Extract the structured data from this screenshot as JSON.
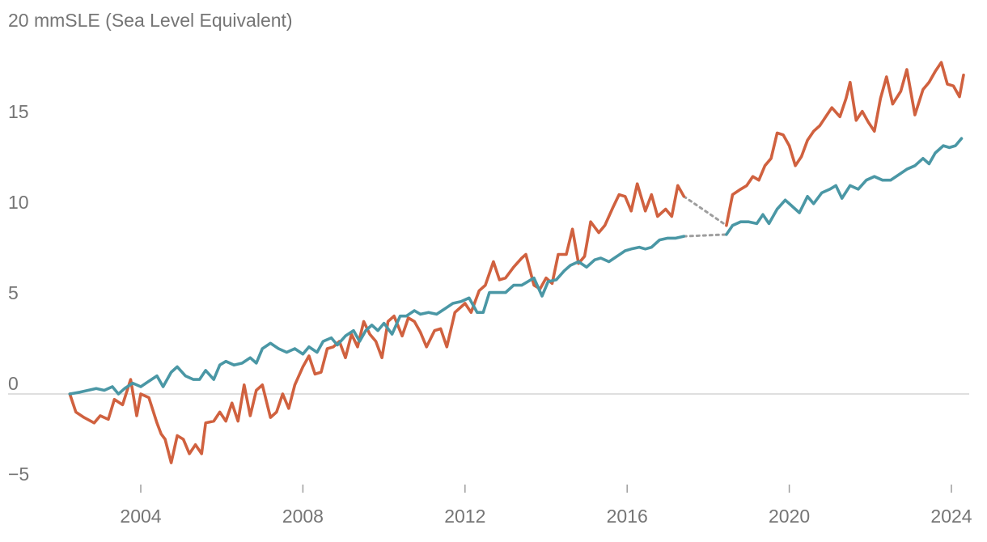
{
  "chart_data": {
    "type": "line",
    "title": "",
    "ylabel": "mmSLE (Sea Level Equivalent)",
    "top_tick_label": "20 mmSLE (Sea Level Equivalent)",
    "xlabel": "",
    "ylim": [
      -6,
      20
    ],
    "xlim": [
      2002.0,
      2024.6
    ],
    "yticks": [
      {
        "value": 15,
        "label": "15"
      },
      {
        "value": 10,
        "label": "10"
      },
      {
        "value": 5,
        "label": "5"
      },
      {
        "value": 0,
        "label": "0"
      },
      {
        "value": -5,
        "label": "−5"
      }
    ],
    "xticks": [
      {
        "value": 2004,
        "label": "2004"
      },
      {
        "value": 2008,
        "label": "2008"
      },
      {
        "value": 2012,
        "label": "2012"
      },
      {
        "value": 2016,
        "label": "2016"
      },
      {
        "value": 2020,
        "label": "2020"
      },
      {
        "value": 2024,
        "label": "2024"
      }
    ],
    "gap": {
      "start": 2017.4,
      "end": 2018.45,
      "style": "dotted",
      "color": "#9e9e9e"
    },
    "series": [
      {
        "name": "series-orange",
        "color": "#d0613f",
        "points": [
          [
            2002.25,
            0.0
          ],
          [
            2002.4,
            -1.0
          ],
          [
            2002.6,
            -1.3
          ],
          [
            2002.85,
            -1.6
          ],
          [
            2003.0,
            -1.2
          ],
          [
            2003.2,
            -1.4
          ],
          [
            2003.35,
            -0.3
          ],
          [
            2003.55,
            -0.6
          ],
          [
            2003.75,
            0.8
          ],
          [
            2003.9,
            -1.2
          ],
          [
            2004.0,
            0.0
          ],
          [
            2004.2,
            -0.2
          ],
          [
            2004.4,
            -1.6
          ],
          [
            2004.5,
            -2.2
          ],
          [
            2004.6,
            -2.5
          ],
          [
            2004.75,
            -3.8
          ],
          [
            2004.9,
            -2.3
          ],
          [
            2005.05,
            -2.5
          ],
          [
            2005.2,
            -3.3
          ],
          [
            2005.35,
            -2.8
          ],
          [
            2005.5,
            -3.3
          ],
          [
            2005.6,
            -1.6
          ],
          [
            2005.8,
            -1.5
          ],
          [
            2005.95,
            -1.0
          ],
          [
            2006.1,
            -1.5
          ],
          [
            2006.25,
            -0.5
          ],
          [
            2006.4,
            -1.5
          ],
          [
            2006.55,
            0.5
          ],
          [
            2006.7,
            -1.2
          ],
          [
            2006.85,
            0.2
          ],
          [
            2007.0,
            0.5
          ],
          [
            2007.2,
            -1.3
          ],
          [
            2007.35,
            -1.0
          ],
          [
            2007.5,
            0.0
          ],
          [
            2007.65,
            -0.8
          ],
          [
            2007.8,
            0.5
          ],
          [
            2008.0,
            1.5
          ],
          [
            2008.15,
            2.1
          ],
          [
            2008.3,
            1.1
          ],
          [
            2008.45,
            1.2
          ],
          [
            2008.6,
            2.5
          ],
          [
            2008.75,
            2.6
          ],
          [
            2008.9,
            2.9
          ],
          [
            2009.05,
            2.0
          ],
          [
            2009.2,
            3.3
          ],
          [
            2009.35,
            2.6
          ],
          [
            2009.5,
            4.0
          ],
          [
            2009.65,
            3.3
          ],
          [
            2009.8,
            2.9
          ],
          [
            2009.95,
            2.0
          ],
          [
            2010.1,
            4.0
          ],
          [
            2010.25,
            4.3
          ],
          [
            2010.45,
            3.2
          ],
          [
            2010.6,
            4.2
          ],
          [
            2010.75,
            4.0
          ],
          [
            2010.9,
            3.4
          ],
          [
            2011.05,
            2.6
          ],
          [
            2011.25,
            3.5
          ],
          [
            2011.4,
            3.6
          ],
          [
            2011.55,
            2.6
          ],
          [
            2011.75,
            4.5
          ],
          [
            2011.9,
            4.8
          ],
          [
            2012.0,
            5.0
          ],
          [
            2012.15,
            4.5
          ],
          [
            2012.35,
            5.7
          ],
          [
            2012.5,
            6.0
          ],
          [
            2012.7,
            7.3
          ],
          [
            2012.85,
            6.3
          ],
          [
            2013.0,
            6.4
          ],
          [
            2013.2,
            7.0
          ],
          [
            2013.4,
            7.5
          ],
          [
            2013.5,
            7.7
          ],
          [
            2013.7,
            6.0
          ],
          [
            2013.85,
            5.8
          ],
          [
            2014.0,
            6.4
          ],
          [
            2014.15,
            6.1
          ],
          [
            2014.3,
            7.7
          ],
          [
            2014.5,
            7.7
          ],
          [
            2014.65,
            9.1
          ],
          [
            2014.8,
            7.2
          ],
          [
            2014.95,
            7.6
          ],
          [
            2015.1,
            9.5
          ],
          [
            2015.3,
            8.9
          ],
          [
            2015.45,
            9.3
          ],
          [
            2015.65,
            10.3
          ],
          [
            2015.8,
            11.0
          ],
          [
            2015.95,
            10.9
          ],
          [
            2016.1,
            10.1
          ],
          [
            2016.25,
            11.6
          ],
          [
            2016.45,
            10.1
          ],
          [
            2016.6,
            11.0
          ],
          [
            2016.75,
            9.8
          ],
          [
            2016.95,
            10.2
          ],
          [
            2017.1,
            9.8
          ],
          [
            2017.25,
            11.5
          ],
          [
            2017.4,
            10.9
          ]
        ]
      },
      {
        "name": "series-orange-2",
        "color": "#d0613f",
        "points": [
          [
            2018.45,
            9.3
          ],
          [
            2018.6,
            11.0
          ],
          [
            2018.8,
            11.3
          ],
          [
            2018.95,
            11.5
          ],
          [
            2019.1,
            12.0
          ],
          [
            2019.25,
            11.8
          ],
          [
            2019.4,
            12.6
          ],
          [
            2019.55,
            13.0
          ],
          [
            2019.7,
            14.4
          ],
          [
            2019.85,
            14.3
          ],
          [
            2020.0,
            13.7
          ],
          [
            2020.15,
            12.6
          ],
          [
            2020.3,
            13.1
          ],
          [
            2020.45,
            14.0
          ],
          [
            2020.6,
            14.5
          ],
          [
            2020.75,
            14.8
          ],
          [
            2020.9,
            15.3
          ],
          [
            2021.05,
            15.8
          ],
          [
            2021.25,
            15.3
          ],
          [
            2021.4,
            16.3
          ],
          [
            2021.5,
            17.2
          ],
          [
            2021.65,
            15.1
          ],
          [
            2021.8,
            15.6
          ],
          [
            2021.95,
            15.0
          ],
          [
            2022.1,
            14.5
          ],
          [
            2022.25,
            16.3
          ],
          [
            2022.4,
            17.5
          ],
          [
            2022.55,
            16.0
          ],
          [
            2022.75,
            16.7
          ],
          [
            2022.9,
            17.9
          ],
          [
            2023.1,
            15.4
          ],
          [
            2023.3,
            16.8
          ],
          [
            2023.45,
            17.2
          ],
          [
            2023.6,
            17.8
          ],
          [
            2023.75,
            18.3
          ],
          [
            2023.9,
            17.1
          ],
          [
            2024.05,
            17.0
          ],
          [
            2024.2,
            16.4
          ],
          [
            2024.3,
            17.6
          ]
        ]
      },
      {
        "name": "series-teal",
        "color": "#4a97a5",
        "points": [
          [
            2002.25,
            0.0
          ],
          [
            2002.5,
            0.1
          ],
          [
            2002.7,
            0.2
          ],
          [
            2002.9,
            0.3
          ],
          [
            2003.1,
            0.2
          ],
          [
            2003.3,
            0.4
          ],
          [
            2003.45,
            0.0
          ],
          [
            2003.6,
            0.3
          ],
          [
            2003.8,
            0.6
          ],
          [
            2004.0,
            0.4
          ],
          [
            2004.2,
            0.7
          ],
          [
            2004.4,
            1.0
          ],
          [
            2004.55,
            0.4
          ],
          [
            2004.75,
            1.2
          ],
          [
            2004.9,
            1.5
          ],
          [
            2005.1,
            1.0
          ],
          [
            2005.3,
            0.8
          ],
          [
            2005.45,
            0.8
          ],
          [
            2005.6,
            1.3
          ],
          [
            2005.8,
            0.8
          ],
          [
            2005.95,
            1.6
          ],
          [
            2006.1,
            1.8
          ],
          [
            2006.3,
            1.6
          ],
          [
            2006.5,
            1.7
          ],
          [
            2006.7,
            2.0
          ],
          [
            2006.85,
            1.7
          ],
          [
            2007.0,
            2.5
          ],
          [
            2007.2,
            2.8
          ],
          [
            2007.4,
            2.5
          ],
          [
            2007.6,
            2.3
          ],
          [
            2007.8,
            2.5
          ],
          [
            2008.0,
            2.2
          ],
          [
            2008.15,
            2.6
          ],
          [
            2008.35,
            2.3
          ],
          [
            2008.5,
            2.9
          ],
          [
            2008.7,
            3.1
          ],
          [
            2008.85,
            2.7
          ],
          [
            2009.05,
            3.2
          ],
          [
            2009.25,
            3.5
          ],
          [
            2009.4,
            2.9
          ],
          [
            2009.55,
            3.5
          ],
          [
            2009.7,
            3.8
          ],
          [
            2009.85,
            3.5
          ],
          [
            2010.0,
            3.9
          ],
          [
            2010.2,
            3.3
          ],
          [
            2010.4,
            4.3
          ],
          [
            2010.55,
            4.3
          ],
          [
            2010.75,
            4.6
          ],
          [
            2010.9,
            4.4
          ],
          [
            2011.1,
            4.5
          ],
          [
            2011.3,
            4.4
          ],
          [
            2011.5,
            4.7
          ],
          [
            2011.7,
            5.0
          ],
          [
            2011.9,
            5.1
          ],
          [
            2012.1,
            5.3
          ],
          [
            2012.3,
            4.5
          ],
          [
            2012.45,
            4.5
          ],
          [
            2012.6,
            5.6
          ],
          [
            2012.8,
            5.6
          ],
          [
            2013.0,
            5.6
          ],
          [
            2013.2,
            6.0
          ],
          [
            2013.4,
            6.0
          ],
          [
            2013.55,
            6.2
          ],
          [
            2013.7,
            6.4
          ],
          [
            2013.9,
            5.4
          ],
          [
            2014.05,
            6.2
          ],
          [
            2014.25,
            6.3
          ],
          [
            2014.45,
            6.8
          ],
          [
            2014.6,
            7.1
          ],
          [
            2014.8,
            7.3
          ],
          [
            2015.0,
            7.0
          ],
          [
            2015.2,
            7.4
          ],
          [
            2015.35,
            7.5
          ],
          [
            2015.55,
            7.3
          ],
          [
            2015.75,
            7.6
          ],
          [
            2015.95,
            7.9
          ],
          [
            2016.1,
            8.0
          ],
          [
            2016.3,
            8.1
          ],
          [
            2016.45,
            8.0
          ],
          [
            2016.6,
            8.1
          ],
          [
            2016.8,
            8.5
          ],
          [
            2017.0,
            8.6
          ],
          [
            2017.2,
            8.6
          ],
          [
            2017.4,
            8.7
          ]
        ]
      },
      {
        "name": "series-teal-2",
        "color": "#4a97a5",
        "points": [
          [
            2018.45,
            8.8
          ],
          [
            2018.6,
            9.3
          ],
          [
            2018.8,
            9.5
          ],
          [
            2019.0,
            9.5
          ],
          [
            2019.2,
            9.4
          ],
          [
            2019.35,
            9.9
          ],
          [
            2019.5,
            9.4
          ],
          [
            2019.7,
            10.2
          ],
          [
            2019.9,
            10.7
          ],
          [
            2020.05,
            10.4
          ],
          [
            2020.25,
            10.0
          ],
          [
            2020.45,
            10.9
          ],
          [
            2020.6,
            10.5
          ],
          [
            2020.8,
            11.1
          ],
          [
            2021.0,
            11.3
          ],
          [
            2021.15,
            11.5
          ],
          [
            2021.3,
            10.8
          ],
          [
            2021.5,
            11.5
          ],
          [
            2021.7,
            11.3
          ],
          [
            2021.9,
            11.8
          ],
          [
            2022.1,
            12.0
          ],
          [
            2022.3,
            11.8
          ],
          [
            2022.5,
            11.8
          ],
          [
            2022.7,
            12.1
          ],
          [
            2022.9,
            12.4
          ],
          [
            2023.1,
            12.6
          ],
          [
            2023.3,
            13.0
          ],
          [
            2023.45,
            12.7
          ],
          [
            2023.6,
            13.3
          ],
          [
            2023.8,
            13.7
          ],
          [
            2023.95,
            13.6
          ],
          [
            2024.1,
            13.7
          ],
          [
            2024.25,
            14.1
          ]
        ]
      }
    ]
  }
}
